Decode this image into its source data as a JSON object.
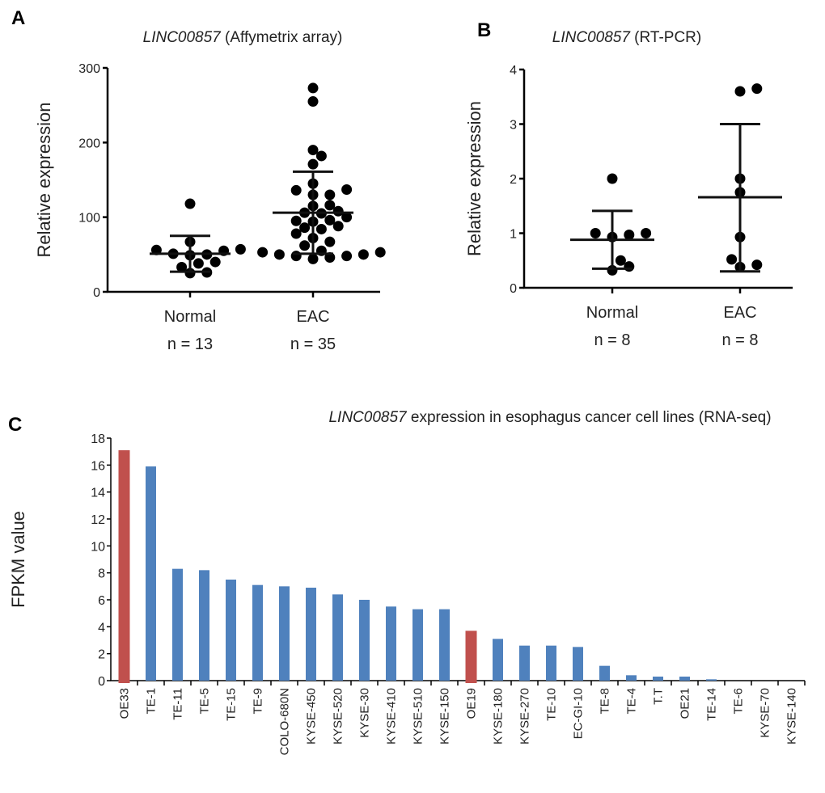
{
  "chart_data": [
    {
      "panel": "A",
      "type": "scatter",
      "title_italic": "LINC00857",
      "title_rest": " (Affymetrix array)",
      "ylabel": "Relative expression",
      "ylim": [
        0,
        300
      ],
      "yticks": [
        "0",
        "100",
        "200",
        "300"
      ],
      "groups": [
        {
          "name": "Normal",
          "n_label": "n = 13",
          "mean": 51,
          "sd_low": 27,
          "sd_high": 75,
          "values": [
            118,
            67,
            55,
            50,
            57,
            49,
            51,
            56,
            40,
            38,
            33,
            25,
            26
          ]
        },
        {
          "name": "EAC",
          "n_label": "n = 35",
          "mean": 106,
          "sd_low": 51,
          "sd_high": 161,
          "values": [
            273,
            255,
            190,
            182,
            171,
            145,
            136,
            130,
            130,
            137,
            115,
            105,
            106,
            108,
            116,
            100,
            95,
            96,
            86,
            88,
            94,
            84,
            78,
            72,
            67,
            62,
            55,
            53,
            50,
            48,
            46,
            44,
            48,
            50,
            53
          ]
        }
      ]
    },
    {
      "panel": "B",
      "type": "scatter",
      "title_italic": "LINC00857",
      "title_rest": " (RT-PCR)",
      "ylabel": "Relative expression",
      "ylim": [
        0,
        4
      ],
      "yticks": [
        "0",
        "1",
        "2",
        "3",
        "4"
      ],
      "groups": [
        {
          "name": "Normal",
          "n_label": "n = 8",
          "mean": 0.88,
          "sd_low": 0.35,
          "sd_high": 1.41,
          "values": [
            2.0,
            1.0,
            0.97,
            0.93,
            1.0,
            0.5,
            0.32,
            0.39
          ]
        },
        {
          "name": "EAC",
          "n_label": "n = 8",
          "mean": 1.66,
          "sd_low": 0.3,
          "sd_high": 3.0,
          "values": [
            3.65,
            3.6,
            2.0,
            1.75,
            0.93,
            0.52,
            0.38,
            0.42
          ]
        }
      ]
    },
    {
      "panel": "C",
      "type": "bar",
      "title_italic": "LINC00857",
      "title_rest": " expression in esophagus cancer cell lines (RNA-seq)",
      "ylabel": "FPKM value",
      "ylim": [
        0,
        18
      ],
      "yticks": [
        "0",
        "2",
        "4",
        "6",
        "8",
        "10",
        "12",
        "14",
        "16",
        "18"
      ],
      "categories": [
        "OE33",
        "TE-1",
        "TE-11",
        "TE-5",
        "TE-15",
        "TE-9",
        "COLO-680N",
        "KYSE-450",
        "KYSE-520",
        "KYSE-30",
        "KYSE-410",
        "KYSE-510",
        "KYSE-150",
        "OE19",
        "KYSE-180",
        "KYSE-270",
        "TE-10",
        "EC-GI-10",
        "TE-8",
        "TE-4",
        "T.T",
        "OE21",
        "TE-14",
        "TE-6",
        "KYSE-70",
        "KYSE-140"
      ],
      "values": [
        17.1,
        15.9,
        8.3,
        8.2,
        7.5,
        7.1,
        7.0,
        6.9,
        6.4,
        6.0,
        5.5,
        5.3,
        5.3,
        3.7,
        3.1,
        2.6,
        2.6,
        2.5,
        1.1,
        0.4,
        0.3,
        0.3,
        0.1,
        0,
        0,
        0
      ],
      "highlighted": [
        "OE33",
        "OE19"
      ],
      "colors": {
        "default": "#4f81bd",
        "highlight": "#c0504d"
      }
    }
  ]
}
